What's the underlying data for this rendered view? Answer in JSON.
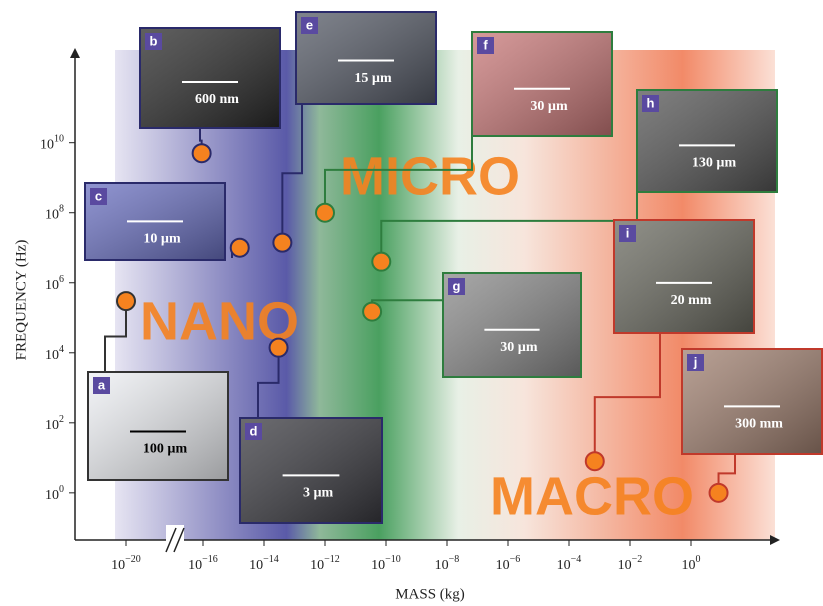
{
  "chart_data": {
    "type": "scatter",
    "x_label": "MASS (kg)",
    "y_label": "FREQUENCY (Hz)",
    "log_x": true,
    "log_y": true,
    "axis_break": true,
    "xlim": [
      1e-22,
      1000.0
    ],
    "ylim": [
      0.045,
      2300000000000.0
    ],
    "xticks": [
      {
        "value": 1e-20,
        "label": "10−20"
      },
      {
        "value": 1e-16,
        "label": "10−16"
      },
      {
        "value": 1e-14,
        "label": "10−14"
      },
      {
        "value": 1e-12,
        "label": "10−12"
      },
      {
        "value": 1e-10,
        "label": "10−10"
      },
      {
        "value": 1e-08,
        "label": "10−8"
      },
      {
        "value": 1e-06,
        "label": "10−6"
      },
      {
        "value": 0.0001,
        "label": "10−4"
      },
      {
        "value": 0.01,
        "label": "10−2"
      },
      {
        "value": 1,
        "label": "100"
      }
    ],
    "yticks": [
      {
        "value": 1,
        "label": "100"
      },
      {
        "value": 100,
        "label": "102"
      },
      {
        "value": 10000,
        "label": "104"
      },
      {
        "value": 1000000,
        "label": "106"
      },
      {
        "value": 100000000,
        "label": "108"
      },
      {
        "value": 10000000000,
        "label": "1010"
      }
    ],
    "x": [
      1e-20,
      8.5e-17,
      1.6e-15,
      3e-14,
      4e-14,
      1e-12,
      3.5e-11,
      7e-11,
      0.0007,
      8
    ],
    "values": [
      300000.0,
      5000000000.0,
      10000000.0,
      14000.0,
      14000000.0,
      100000000.0,
      150000.0,
      4000000.0,
      8,
      1
    ],
    "color": "#f5821f",
    "point_labels": [
      "a",
      "b",
      "c",
      "d",
      "e",
      "f",
      "g",
      "h",
      "i",
      "j"
    ],
    "scale_bars": [
      "100 µm",
      "600 nm",
      "10 µm",
      "3 µm",
      "15 µm",
      "30 µm",
      "30 µm",
      "130 µm",
      "20 mm",
      "300 mm"
    ],
    "regions": [
      "NANO",
      "MICRO",
      "MACRO"
    ]
  }
}
